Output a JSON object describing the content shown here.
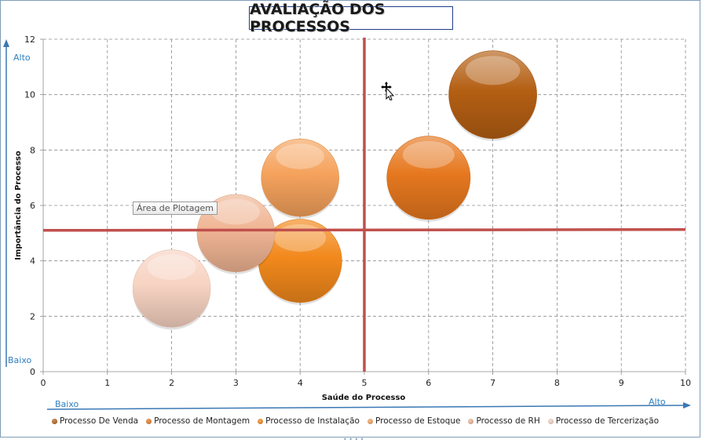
{
  "chart_data": {
    "type": "bubble",
    "title": "AVALIAÇÃO DOS PROCESSOS",
    "xlabel": "Saúde do Processo",
    "ylabel": "Importância do Processo",
    "xlim": [
      0,
      10
    ],
    "ylim": [
      0,
      12
    ],
    "x_ticks": [
      "0",
      "1",
      "2",
      "3",
      "4",
      "5",
      "6",
      "7",
      "8",
      "9",
      "10"
    ],
    "y_ticks": [
      "0",
      "2",
      "4",
      "6",
      "8",
      "10",
      "12"
    ],
    "grid": true,
    "legend_position": "bottom",
    "quadrant_lines": {
      "x": 5,
      "y": 5.1,
      "color": "#c0504d"
    },
    "series": [
      {
        "name": "Processo De Venda",
        "x": 7,
        "y": 10,
        "size": 1.0,
        "color": "#b45f13"
      },
      {
        "name": "Processo de Montagem",
        "x": 6,
        "y": 7,
        "size": 0.9,
        "color": "#e6781f"
      },
      {
        "name": "Processo de Instalação",
        "x": 4,
        "y": 4,
        "size": 0.9,
        "color": "#f2891c"
      },
      {
        "name": "Processo de Estoque",
        "x": 4,
        "y": 7,
        "size": 0.78,
        "color": "#f5a25c"
      },
      {
        "name": "Processo de RH",
        "x": 3,
        "y": 5,
        "size": 0.78,
        "color": "#f0b594"
      },
      {
        "name": "Processo de Tercerização",
        "x": 2,
        "y": 3,
        "size": 0.78,
        "color": "#f7d3c2"
      }
    ]
  },
  "annotations": {
    "y_high": "Alto",
    "y_low": "Baixo",
    "x_low": "Baixo",
    "x_high": "Alto",
    "tooltip": "Área de Plotagem"
  }
}
